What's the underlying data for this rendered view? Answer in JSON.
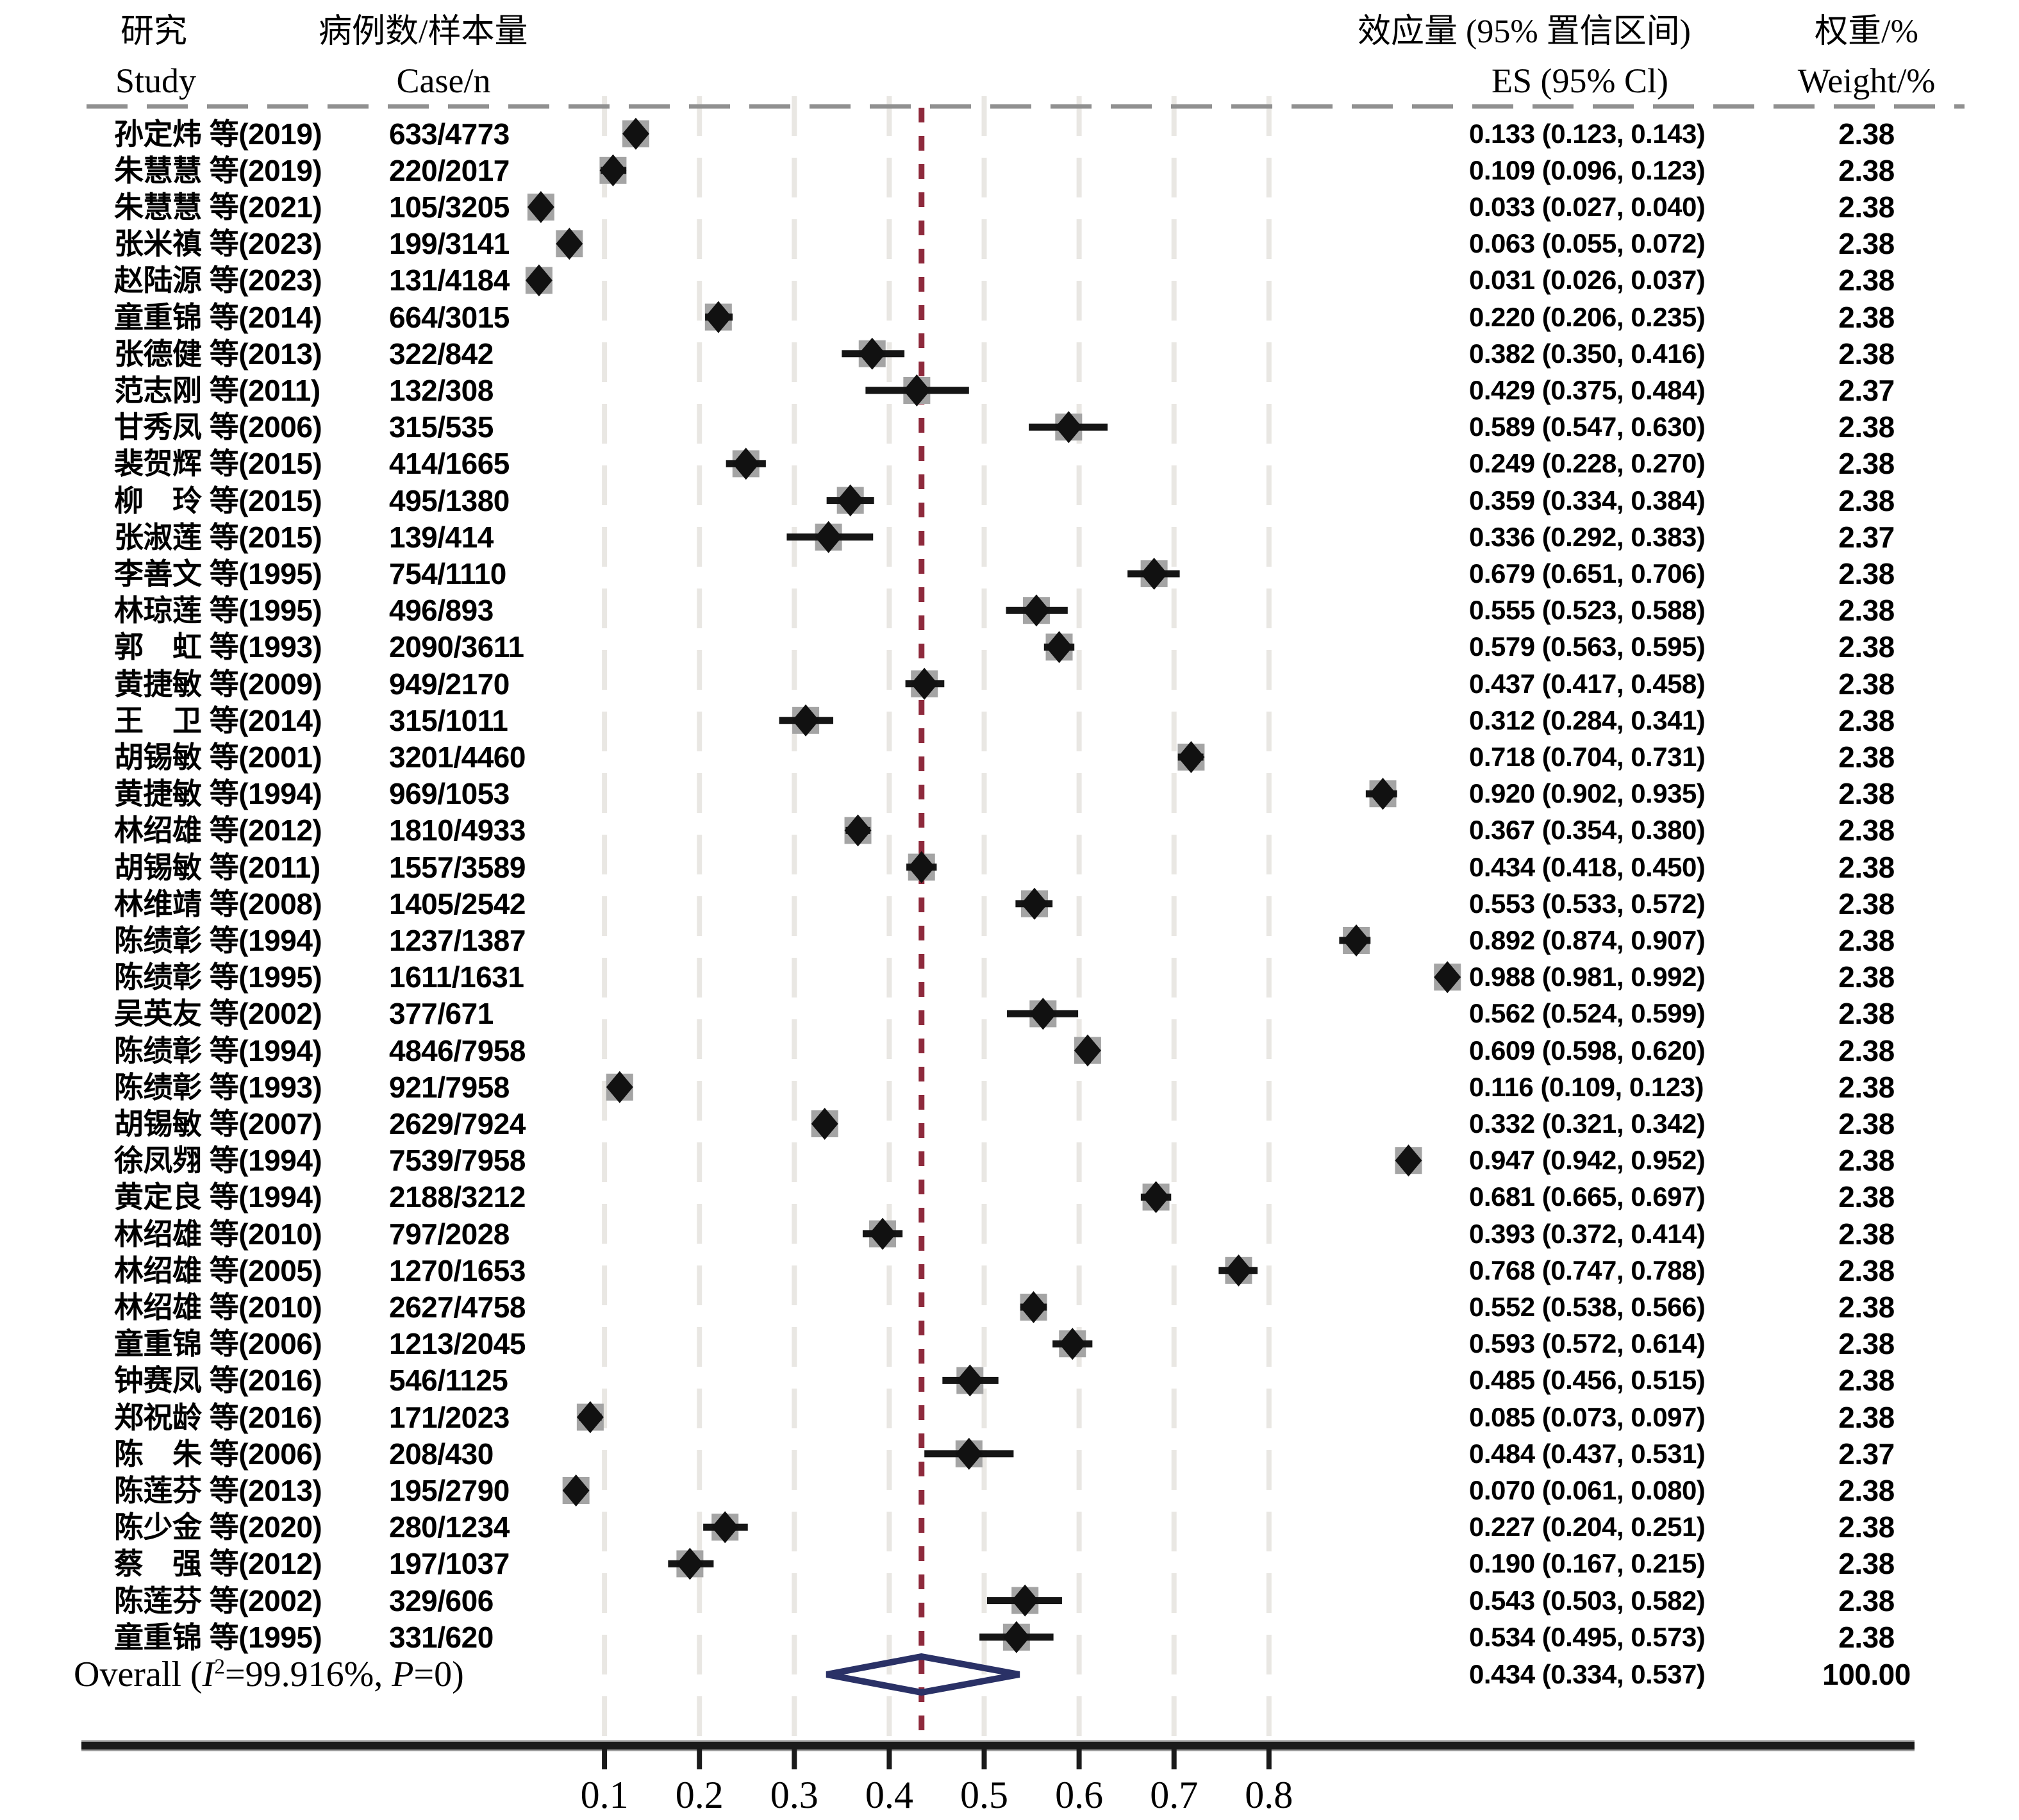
{
  "col_headers": {
    "study": {
      "zh": "研究",
      "en": "Study"
    },
    "case": {
      "zh": "病例数/样本量",
      "en": "Case/n"
    },
    "es": {
      "zh": "效应量 (95% 置信区间)",
      "en": "ES (95% Cl)"
    },
    "weight": {
      "zh": "权重/%",
      "en": "Weight/%"
    }
  },
  "colors": {
    "marker_square": "#a4a4a4",
    "marker_diamond": "#111111",
    "ci_line": "#151515",
    "grid_line": "#e9e7e3",
    "reference_line_red": "#8e2a3c",
    "overall_diamond_outline": "#2a3166",
    "axis_line": "#1a1a1a",
    "axis_edge_gray": "#9a9a9a",
    "header_dash_line": "#909090",
    "text": "#000000"
  },
  "chart_data": {
    "type": "scatter",
    "subtype": "forest-plot",
    "xlabel": "",
    "ylabel": "",
    "x_ticks": [
      0.1,
      0.2,
      0.3,
      0.4,
      0.5,
      0.6,
      0.7,
      0.8
    ],
    "x_tick_labels": [
      "0.1",
      "0.2",
      "0.3",
      "0.4",
      "0.5",
      "0.6",
      "0.7",
      "0.8"
    ],
    "grid": "vertical-dashed",
    "reference_line_value": 0.434,
    "studies": [
      {
        "label": "孙定炜 等(2019)",
        "case_n": "633/4773",
        "es": 0.133,
        "lo": 0.123,
        "hi": 0.143,
        "es_label": "0.133 (0.123, 0.143)",
        "weight": "2.38"
      },
      {
        "label": "朱慧慧 等(2019)",
        "case_n": "220/2017",
        "es": 0.109,
        "lo": 0.096,
        "hi": 0.123,
        "es_label": "0.109 (0.096, 0.123)",
        "weight": "2.38"
      },
      {
        "label": "朱慧慧 等(2021)",
        "case_n": "105/3205",
        "es": 0.033,
        "lo": 0.027,
        "hi": 0.04,
        "es_label": "0.033 (0.027, 0.040)",
        "weight": "2.38"
      },
      {
        "label": "张米禛 等(2023)",
        "case_n": "199/3141",
        "es": 0.063,
        "lo": 0.055,
        "hi": 0.072,
        "es_label": "0.063 (0.055, 0.072)",
        "weight": "2.38"
      },
      {
        "label": "赵陆源 等(2023)",
        "case_n": "131/4184",
        "es": 0.031,
        "lo": 0.026,
        "hi": 0.037,
        "es_label": "0.031 (0.026, 0.037)",
        "weight": "2.38"
      },
      {
        "label": "童重锦 等(2014)",
        "case_n": "664/3015",
        "es": 0.22,
        "lo": 0.206,
        "hi": 0.235,
        "es_label": "0.220 (0.206, 0.235)",
        "weight": "2.38"
      },
      {
        "label": "张德健 等(2013)",
        "case_n": "322/842",
        "es": 0.382,
        "lo": 0.35,
        "hi": 0.416,
        "es_label": "0.382 (0.350, 0.416)",
        "weight": "2.38"
      },
      {
        "label": "范志刚 等(2011)",
        "case_n": "132/308",
        "es": 0.429,
        "lo": 0.375,
        "hi": 0.484,
        "es_label": "0.429 (0.375, 0.484)",
        "weight": "2.37"
      },
      {
        "label": "甘秀凤 等(2006)",
        "case_n": "315/535",
        "es": 0.589,
        "lo": 0.547,
        "hi": 0.63,
        "es_label": "0.589 (0.547, 0.630)",
        "weight": "2.38"
      },
      {
        "label": "裴贺辉 等(2015)",
        "case_n": "414/1665",
        "es": 0.249,
        "lo": 0.228,
        "hi": 0.27,
        "es_label": "0.249 (0.228, 0.270)",
        "weight": "2.38"
      },
      {
        "label": "柳　玲 等(2015)",
        "case_n": "495/1380",
        "es": 0.359,
        "lo": 0.334,
        "hi": 0.384,
        "es_label": "0.359 (0.334, 0.384)",
        "weight": "2.38"
      },
      {
        "label": "张淑莲 等(2015)",
        "case_n": "139/414",
        "es": 0.336,
        "lo": 0.292,
        "hi": 0.383,
        "es_label": "0.336 (0.292, 0.383)",
        "weight": "2.37"
      },
      {
        "label": "李善文 等(1995)",
        "case_n": "754/1110",
        "es": 0.679,
        "lo": 0.651,
        "hi": 0.706,
        "es_label": "0.679 (0.651, 0.706)",
        "weight": "2.38"
      },
      {
        "label": "林琼莲 等(1995)",
        "case_n": "496/893",
        "es": 0.555,
        "lo": 0.523,
        "hi": 0.588,
        "es_label": "0.555 (0.523, 0.588)",
        "weight": "2.38"
      },
      {
        "label": "郭　虹 等(1993)",
        "case_n": "2090/3611",
        "es": 0.579,
        "lo": 0.563,
        "hi": 0.595,
        "es_label": "0.579 (0.563, 0.595)",
        "weight": "2.38"
      },
      {
        "label": "黄捷敏 等(2009)",
        "case_n": "949/2170",
        "es": 0.437,
        "lo": 0.417,
        "hi": 0.458,
        "es_label": "0.437 (0.417, 0.458)",
        "weight": "2.38"
      },
      {
        "label": "王　卫 等(2014)",
        "case_n": "315/1011",
        "es": 0.312,
        "lo": 0.284,
        "hi": 0.341,
        "es_label": "0.312 (0.284, 0.341)",
        "weight": "2.38"
      },
      {
        "label": "胡锡敏 等(2001)",
        "case_n": "3201/4460",
        "es": 0.718,
        "lo": 0.704,
        "hi": 0.731,
        "es_label": "0.718 (0.704, 0.731)",
        "weight": "2.38"
      },
      {
        "label": "黄捷敏 等(1994)",
        "case_n": "969/1053",
        "es": 0.92,
        "lo": 0.902,
        "hi": 0.935,
        "es_label": "0.920 (0.902, 0.935)",
        "weight": "2.38"
      },
      {
        "label": "林绍雄 等(2012)",
        "case_n": "1810/4933",
        "es": 0.367,
        "lo": 0.354,
        "hi": 0.38,
        "es_label": "0.367 (0.354, 0.380)",
        "weight": "2.38"
      },
      {
        "label": "胡锡敏 等(2011)",
        "case_n": "1557/3589",
        "es": 0.434,
        "lo": 0.418,
        "hi": 0.45,
        "es_label": "0.434 (0.418, 0.450)",
        "weight": "2.38"
      },
      {
        "label": "林维靖 等(2008)",
        "case_n": "1405/2542",
        "es": 0.553,
        "lo": 0.533,
        "hi": 0.572,
        "es_label": "0.553 (0.533, 0.572)",
        "weight": "2.38"
      },
      {
        "label": "陈绩彰 等(1994)",
        "case_n": "1237/1387",
        "es": 0.892,
        "lo": 0.874,
        "hi": 0.907,
        "es_label": "0.892 (0.874, 0.907)",
        "weight": "2.38"
      },
      {
        "label": "陈绩彰 等(1995)",
        "case_n": "1611/1631",
        "es": 0.988,
        "lo": 0.981,
        "hi": 0.992,
        "es_label": "0.988 (0.981, 0.992)",
        "weight": "2.38"
      },
      {
        "label": "吴英友 等(2002)",
        "case_n": "377/671",
        "es": 0.562,
        "lo": 0.524,
        "hi": 0.599,
        "es_label": "0.562 (0.524, 0.599)",
        "weight": "2.38"
      },
      {
        "label": "陈绩彰 等(1994)",
        "case_n": "4846/7958",
        "es": 0.609,
        "lo": 0.598,
        "hi": 0.62,
        "es_label": "0.609 (0.598, 0.620)",
        "weight": "2.38"
      },
      {
        "label": "陈绩彰 等(1993)",
        "case_n": "921/7958",
        "es": 0.116,
        "lo": 0.109,
        "hi": 0.123,
        "es_label": "0.116 (0.109, 0.123)",
        "weight": "2.38"
      },
      {
        "label": "胡锡敏 等(2007)",
        "case_n": "2629/7924",
        "es": 0.332,
        "lo": 0.321,
        "hi": 0.342,
        "es_label": "0.332 (0.321, 0.342)",
        "weight": "2.38"
      },
      {
        "label": "徐凤翙 等(1994)",
        "case_n": "7539/7958",
        "es": 0.947,
        "lo": 0.942,
        "hi": 0.952,
        "es_label": "0.947 (0.942, 0.952)",
        "weight": "2.38"
      },
      {
        "label": "黄定良 等(1994)",
        "case_n": "2188/3212",
        "es": 0.681,
        "lo": 0.665,
        "hi": 0.697,
        "es_label": "0.681 (0.665, 0.697)",
        "weight": "2.38"
      },
      {
        "label": "林绍雄 等(2010)",
        "case_n": "797/2028",
        "es": 0.393,
        "lo": 0.372,
        "hi": 0.414,
        "es_label": "0.393 (0.372, 0.414)",
        "weight": "2.38"
      },
      {
        "label": "林绍雄 等(2005)",
        "case_n": "1270/1653",
        "es": 0.768,
        "lo": 0.747,
        "hi": 0.788,
        "es_label": "0.768 (0.747, 0.788)",
        "weight": "2.38"
      },
      {
        "label": "林绍雄 等(2010)",
        "case_n": "2627/4758",
        "es": 0.552,
        "lo": 0.538,
        "hi": 0.566,
        "es_label": "0.552 (0.538, 0.566)",
        "weight": "2.38"
      },
      {
        "label": "童重锦 等(2006)",
        "case_n": "1213/2045",
        "es": 0.593,
        "lo": 0.572,
        "hi": 0.614,
        "es_label": "0.593 (0.572, 0.614)",
        "weight": "2.38"
      },
      {
        "label": "钟赛凤 等(2016)",
        "case_n": "546/1125",
        "es": 0.485,
        "lo": 0.456,
        "hi": 0.515,
        "es_label": "0.485 (0.456, 0.515)",
        "weight": "2.38"
      },
      {
        "label": "郑祝龄 等(2016)",
        "case_n": "171/2023",
        "es": 0.085,
        "lo": 0.073,
        "hi": 0.097,
        "es_label": "0.085 (0.073, 0.097)",
        "weight": "2.38"
      },
      {
        "label": "陈　朱 等(2006)",
        "case_n": "208/430",
        "es": 0.484,
        "lo": 0.437,
        "hi": 0.531,
        "es_label": "0.484 (0.437, 0.531)",
        "weight": "2.37"
      },
      {
        "label": "陈莲芬 等(2013)",
        "case_n": "195/2790",
        "es": 0.07,
        "lo": 0.061,
        "hi": 0.08,
        "es_label": "0.070 (0.061, 0.080)",
        "weight": "2.38"
      },
      {
        "label": "陈少金 等(2020)",
        "case_n": "280/1234",
        "es": 0.227,
        "lo": 0.204,
        "hi": 0.251,
        "es_label": "0.227 (0.204, 0.251)",
        "weight": "2.38"
      },
      {
        "label": "蔡　强 等(2012)",
        "case_n": "197/1037",
        "es": 0.19,
        "lo": 0.167,
        "hi": 0.215,
        "es_label": "0.190 (0.167, 0.215)",
        "weight": "2.38"
      },
      {
        "label": "陈莲芬 等(2002)",
        "case_n": "329/606",
        "es": 0.543,
        "lo": 0.503,
        "hi": 0.582,
        "es_label": "0.543 (0.503, 0.582)",
        "weight": "2.38"
      },
      {
        "label": "童重锦 等(1995)",
        "case_n": "331/620",
        "es": 0.534,
        "lo": 0.495,
        "hi": 0.573,
        "es_label": "0.534 (0.495, 0.573)",
        "weight": "2.38"
      }
    ],
    "overall": {
      "parts": [
        {
          "t": "Overall ("
        },
        {
          "t": "I",
          "i": true
        },
        {
          "t": "2",
          "sup": true
        },
        {
          "t": "=99.916%, "
        },
        {
          "t": "P",
          "i": true
        },
        {
          "t": "=0)"
        }
      ],
      "es": 0.434,
      "lo": 0.334,
      "hi": 0.537,
      "es_label": "0.434 (0.334, 0.537)",
      "weight": "100.00"
    }
  }
}
